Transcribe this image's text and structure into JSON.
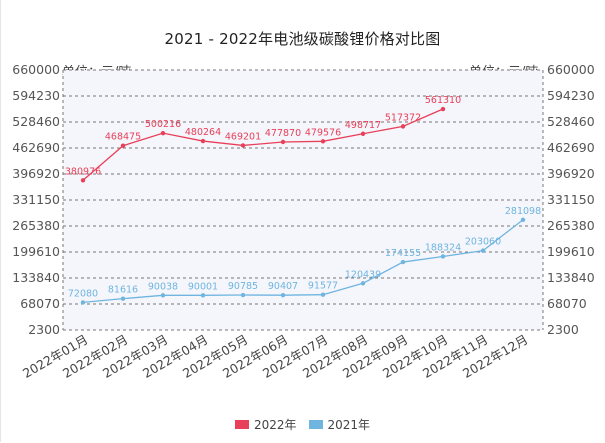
{
  "chart_data": {
    "type": "line",
    "title": "2021 - 2022年电池级碳酸锂价格对比图",
    "unit_label_left": "单位：元/吨",
    "unit_label_right": "单位：元/吨",
    "categories": [
      "2022年01月",
      "2022年02月",
      "2022年03月",
      "2022年04月",
      "2022年05月",
      "2022年06月",
      "2022年07月",
      "2022年08月",
      "2022年09月",
      "2022年10月",
      "2022年11月",
      "2022年12月"
    ],
    "y_ticks": [
      2300,
      68070,
      133840,
      199610,
      265380,
      331150,
      396920,
      462690,
      528460,
      594230,
      660000
    ],
    "ylim": [
      2300,
      660000
    ],
    "series": [
      {
        "name": "2022年",
        "color": "#e8405a",
        "values": [
          380976,
          468475,
          500216,
          480264,
          469201,
          477870,
          479576,
          498717,
          517372,
          561310,
          null,
          null
        ],
        "labels": [
          "380976",
          "468475",
          "500216",
          "480264",
          "469201",
          "477870",
          "479576",
          "498717",
          "517372",
          "561310",
          "",
          ""
        ]
      },
      {
        "name": "2021年",
        "color": "#6fb5e0",
        "values": [
          72080,
          81616,
          90038,
          90001,
          90785,
          90407,
          91577,
          120439,
          174155,
          188324,
          203060,
          281098
        ],
        "labels": [
          "72080",
          "81616",
          "90038",
          "90001",
          "90785",
          "90407",
          "91577",
          "120439",
          "174155",
          "188324",
          "203060",
          "281098"
        ]
      }
    ],
    "legend": [
      "2022年",
      "2021年"
    ],
    "legend_position": "bottom-center",
    "grid": true
  }
}
